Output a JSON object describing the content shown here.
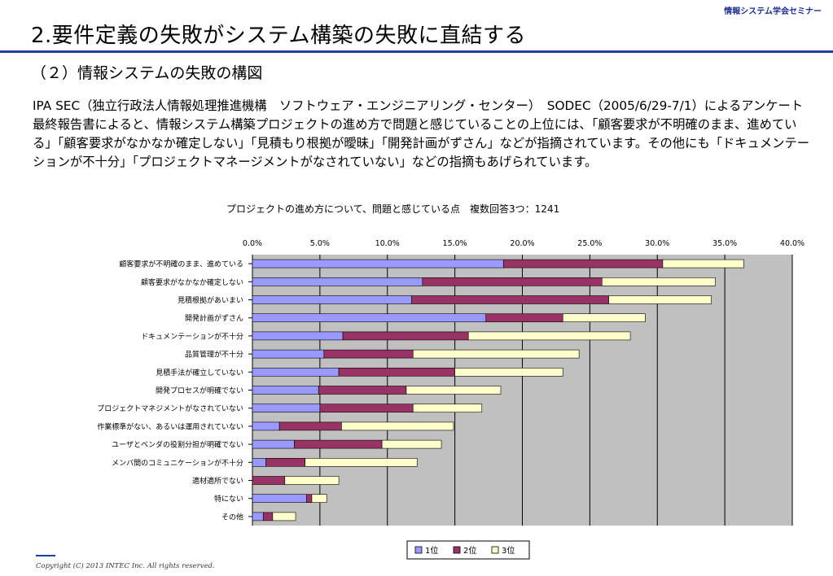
{
  "header": {
    "brand": "情報システム学会セミナー",
    "title": "2.要件定義の失敗がシステム構築の失敗に直結する"
  },
  "section": {
    "subtitle": "（２）情報システムの失敗の構図",
    "text": "IPA SEC（独立行政法人情報処理推進機構　ソフトウェア・エンジニアリング・センター）　SODEC（2005/6/29-7/1）によるアンケート最終報告書によると、情報システム構築プロジェクトの進め方で問題と感じていることの上位には、「顧客要求が不明確のまま、進めている」「顧客要求がなかなか確定しない」「見積もり根拠が曖昧」「開発計画がずさん」などが指摘されています。その他にも「ドキュメンテーションが不十分」「プロジェクトマネージメントがなされていない」などの指摘もあげられています。"
  },
  "chart_data": {
    "type": "bar",
    "orientation": "horizontal",
    "stacked": true,
    "title": "プロジェクトの進め方について、問題と感じている点　複数回答3つ：1241",
    "categories": [
      "顧客要求が不明確のまま、進めている",
      "顧客要求がなかなか確定しない",
      "見積根拠があいまい",
      "開発計画がずさん",
      "ドキュメンテーションが不十分",
      "品質管理が不十分",
      "見積手法が確立していない",
      "開発プロセスが明確でない",
      "プロジェクトマネジメントがなされていない",
      "作業標準がない、あるいは運用されていない",
      "ユーザとベンダの役割分担が明確でない",
      "メンバ間のコミュニケーションが不十分",
      "適材適所でない",
      "特にない",
      "その他"
    ],
    "series": [
      {
        "name": "1位",
        "color": "#9999ff",
        "values": [
          18.6,
          12.6,
          11.8,
          17.3,
          6.7,
          5.3,
          6.4,
          4.9,
          5.0,
          2.0,
          3.1,
          1.0,
          0.0,
          4.0,
          0.8
        ]
      },
      {
        "name": "2位",
        "color": "#993366",
        "values": [
          11.8,
          13.3,
          14.6,
          5.7,
          9.3,
          6.6,
          8.6,
          6.5,
          6.9,
          4.6,
          6.5,
          2.9,
          2.4,
          0.4,
          0.7
        ]
      },
      {
        "name": "3位",
        "color": "#ffffcc",
        "values": [
          6.0,
          8.4,
          7.6,
          6.1,
          12.0,
          12.3,
          8.0,
          7.0,
          5.1,
          8.3,
          4.4,
          8.3,
          4.0,
          1.1,
          1.7
        ]
      }
    ],
    "xlim": [
      0,
      40
    ],
    "xticks": [
      "0.0%",
      "5.0%",
      "10.0%",
      "15.0%",
      "20.0%",
      "25.0%",
      "30.0%",
      "35.0%",
      "40.0%"
    ],
    "grid": true,
    "legend_position": "bottom"
  },
  "footer": {
    "copyright": "Copyright (C) 2013 INTEC Inc. All rights reserved."
  }
}
